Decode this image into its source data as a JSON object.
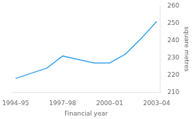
{
  "chart_data": {
    "type": "line",
    "xlabel": "Financial year",
    "ylabel": "square metres",
    "x": [
      0,
      1,
      2,
      3,
      4,
      5,
      6,
      7,
      8,
      9
    ],
    "values": [
      218,
      221,
      224,
      231,
      229,
      227,
      227,
      232,
      241,
      251
    ],
    "xlim": [
      -0.2,
      9.2
    ],
    "xticks": [
      {
        "value": 0,
        "label": "1994–95"
      },
      {
        "value": 3,
        "label": "1997–98"
      },
      {
        "value": 6,
        "label": "2000–01"
      },
      {
        "value": 9,
        "label": "2003–04"
      }
    ],
    "ylim": [
      210,
      260
    ],
    "yticks": [
      210,
      220,
      230,
      240,
      250,
      260
    ],
    "grid": false
  }
}
